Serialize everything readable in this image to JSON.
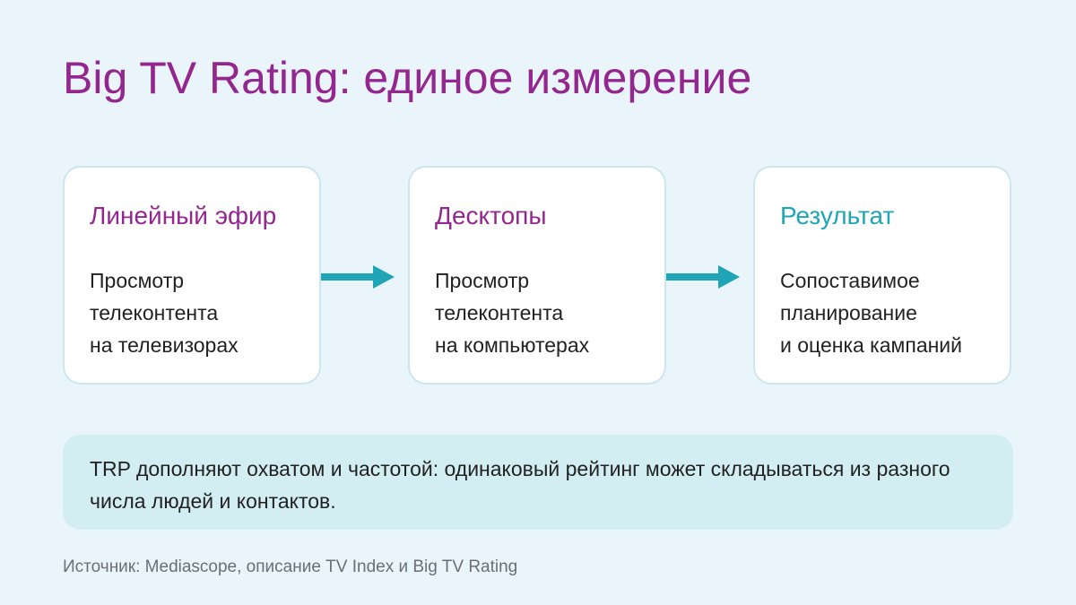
{
  "header": {
    "title": "Big TV Rating: единое измерение"
  },
  "cards": [
    {
      "title": "Линейный эфир",
      "text": "Просмотр\nтелеконтента\nна телевизорах"
    },
    {
      "title": "Десктопы",
      "text": "Просмотр\nтелеконтента\nна компьютерах"
    },
    {
      "title": "Результат",
      "text": "Сопоставимое\nпланирование\nи оценка кампаний"
    }
  ],
  "note": "TRP дополняют охватом и частотой: одинаковый рейтинг может складываться из разного числа людей и контактов.",
  "source": "Источник: Mediascope, описание TV Index и Big TV Rating"
}
